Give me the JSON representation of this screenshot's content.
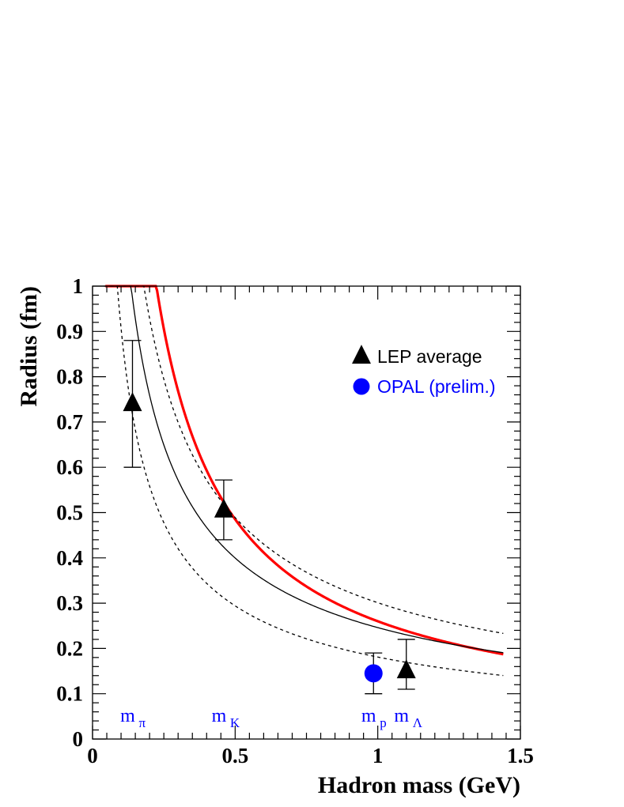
{
  "chart_data": {
    "type": "scatter",
    "title": "",
    "xlabel": "Hadron mass (GeV)",
    "ylabel": "Radius (fm)",
    "xlim": [
      0,
      1.5
    ],
    "ylim": [
      0,
      1
    ],
    "x_ticks": [
      {
        "value": 0,
        "label": "0"
      },
      {
        "value": 0.5,
        "label": "0.5"
      },
      {
        "value": 1,
        "label": "1"
      },
      {
        "value": 1.5,
        "label": "1.5"
      }
    ],
    "y_ticks": [
      {
        "value": 0,
        "label": "0"
      },
      {
        "value": 0.1,
        "label": "0.1"
      },
      {
        "value": 0.2,
        "label": "0.2"
      },
      {
        "value": 0.3,
        "label": "0.3"
      },
      {
        "value": 0.4,
        "label": "0.4"
      },
      {
        "value": 0.5,
        "label": "0.5"
      },
      {
        "value": 0.6,
        "label": "0.6"
      },
      {
        "value": 0.7,
        "label": "0.7"
      },
      {
        "value": 0.8,
        "label": "0.8"
      },
      {
        "value": 0.9,
        "label": "0.9"
      },
      {
        "value": 1,
        "label": "1"
      }
    ],
    "series": [
      {
        "name": "LEP average",
        "marker": "triangle",
        "color": "#000000",
        "points": [
          {
            "x": 0.14,
            "y": 0.74,
            "err_low": 0.14,
            "err_high": 0.14
          },
          {
            "x": 0.46,
            "y": 0.505,
            "err_low": 0.065,
            "err_high": 0.067
          },
          {
            "x": 1.1,
            "y": 0.15,
            "err_low": 0.04,
            "err_high": 0.07
          }
        ]
      },
      {
        "name": "OPAL (prelim.)",
        "marker": "circle",
        "color": "#0000ff",
        "points": [
          {
            "x": 0.985,
            "y": 0.145,
            "err_low": 0.045,
            "err_high": 0.045
          }
        ]
      }
    ],
    "curves": [
      {
        "name": "red-curve",
        "color": "#ff0000",
        "style": "solid",
        "coefficient": 0.26,
        "exponent": 0.9,
        "x_range": [
          0.045,
          1.44
        ]
      },
      {
        "name": "black-curve",
        "color": "#000000",
        "style": "solid",
        "coefficient": 0.246,
        "exponent": 0.7,
        "x_range": [
          0.055,
          1.44
        ]
      },
      {
        "name": "upper-dashed-curve",
        "color": "#000000",
        "style": "dashed",
        "coefficient": 0.301,
        "exponent": 0.7,
        "x_range": [
          0.085,
          1.44
        ]
      },
      {
        "name": "lower-dashed-curve",
        "color": "#000000",
        "style": "dashed",
        "coefficient": 0.181,
        "exponent": 0.7,
        "x_range": [
          0.04,
          1.44
        ]
      }
    ],
    "mass_markers": [
      {
        "name": "pi",
        "main": "m",
        "sub": "π",
        "x": 0.14
      },
      {
        "name": "k",
        "main": "m",
        "sub": "K",
        "x": 0.46
      },
      {
        "name": "p",
        "main": "m",
        "sub": "p",
        "x": 0.985
      },
      {
        "name": "lambda",
        "main": "m",
        "sub": "Λ",
        "x": 1.1
      }
    ],
    "legend": {
      "placement": "top-right"
    },
    "grid": false
  }
}
